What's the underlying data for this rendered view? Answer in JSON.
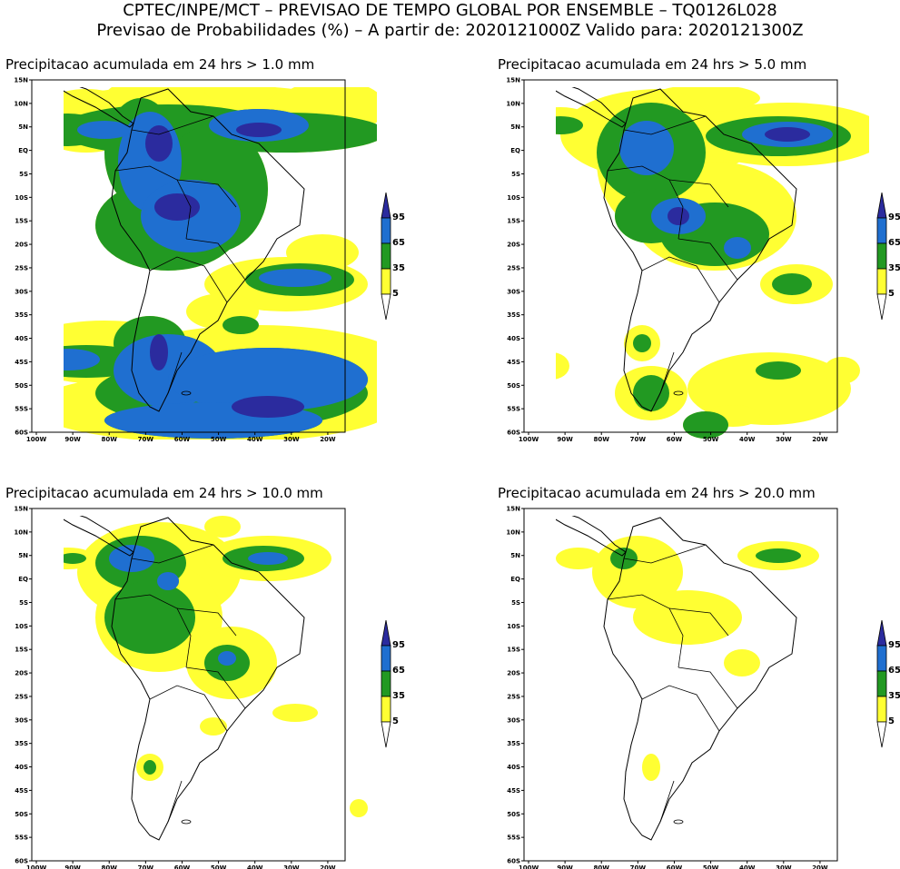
{
  "header": {
    "line1": "CPTEC/INPE/MCT – PREVISAO DE TEMPO GLOBAL POR ENSEMBLE – TQ0126L028",
    "line2": "Previsao de Probabilidades (%) –  A partir de: 2020121000Z  Valido para: 2020121300Z"
  },
  "colors": {
    "yellow": "#ffff33",
    "green": "#229922",
    "blue": "#1f6fd0",
    "darkblue": "#2b2b9e",
    "land": "#ffffff",
    "border": "#000000"
  },
  "legend": {
    "labels": [
      "95",
      "65",
      "35",
      "5"
    ]
  },
  "axes": {
    "lat_labels": [
      "15N",
      "10N",
      "5N",
      "EQ",
      "5S",
      "10S",
      "15S",
      "20S",
      "25S",
      "30S",
      "35S",
      "40S",
      "45S",
      "50S",
      "55S",
      "60S"
    ],
    "lon_labels": [
      "100W",
      "90W",
      "80W",
      "70W",
      "60W",
      "50W",
      "40W",
      "30W",
      "20W"
    ]
  },
  "panels": [
    {
      "title": "Precipitacao acumulada em 24 hrs > 1.0 mm",
      "level": 1
    },
    {
      "title": "Precipitacao acumulada em 24 hrs > 5.0 mm",
      "level": 2
    },
    {
      "title": "Precipitacao acumulada em 24 hrs > 10.0 mm",
      "level": 3
    },
    {
      "title": "Precipitacao acumulada em 24 hrs > 20.0 mm",
      "level": 4
    }
  ]
}
